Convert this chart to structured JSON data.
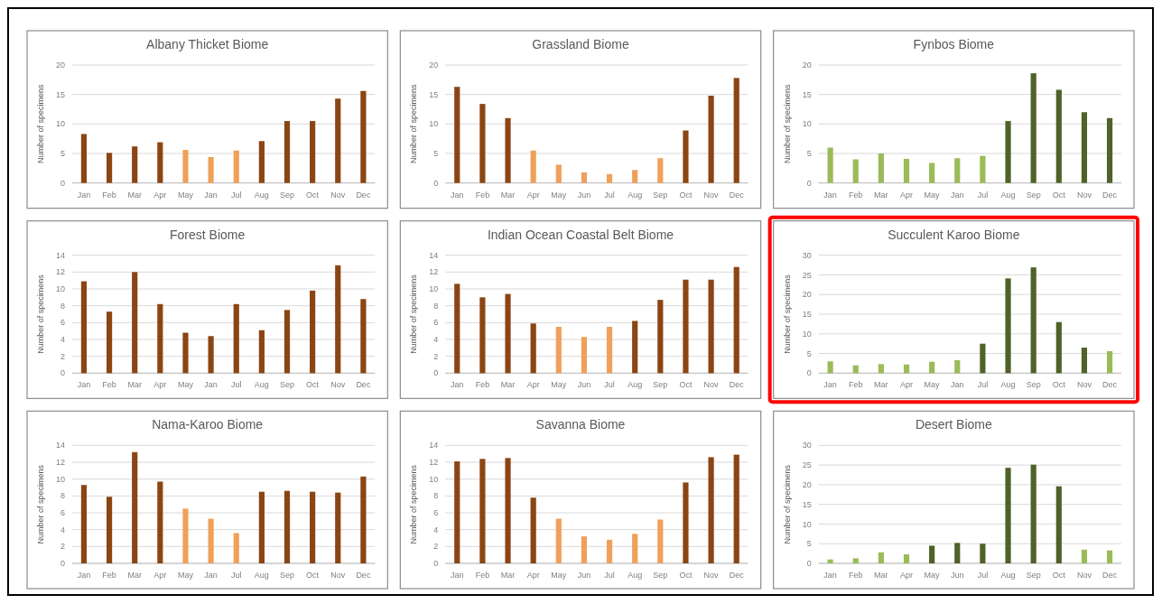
{
  "chart_data": [
    {
      "type": "bar",
      "title": "Albany Thicket Biome",
      "ylabel": "Number of specimens",
      "categories": [
        "Jan",
        "Feb",
        "Mar",
        "Apr",
        "May",
        "Jan",
        "Jul",
        "Aug",
        "Sep",
        "Oct",
        "Nov",
        "Dec"
      ],
      "values": [
        8.3,
        5.1,
        6.2,
        6.9,
        5.6,
        4.4,
        5.5,
        7.1,
        10.5,
        10.5,
        14.3,
        15.6
      ],
      "colors": [
        "#8b4513",
        "#8b4513",
        "#8b4513",
        "#8b4513",
        "#f0a05a",
        "#f0a05a",
        "#f0a05a",
        "#8b4513",
        "#8b4513",
        "#8b4513",
        "#8b4513",
        "#8b4513"
      ],
      "ylim": [
        0,
        20
      ],
      "yticks": [
        0,
        5,
        10,
        15,
        20
      ],
      "grid": "y"
    },
    {
      "type": "bar",
      "title": "Grassland Biome",
      "ylabel": "Number of specimens",
      "categories": [
        "Jan",
        "Feb",
        "Mar",
        "Apr",
        "May",
        "Jun",
        "Jul",
        "Aug",
        "Sep",
        "Oct",
        "Nov",
        "Dec"
      ],
      "values": [
        16.3,
        13.4,
        11.0,
        5.5,
        3.1,
        1.8,
        1.5,
        2.2,
        4.2,
        8.9,
        14.8,
        17.8
      ],
      "colors": [
        "#8b4513",
        "#8b4513",
        "#8b4513",
        "#f0a05a",
        "#f0a05a",
        "#f0a05a",
        "#f0a05a",
        "#f0a05a",
        "#f0a05a",
        "#8b4513",
        "#8b4513",
        "#8b4513"
      ],
      "ylim": [
        0,
        20
      ],
      "yticks": [
        0,
        5,
        10,
        15,
        20
      ],
      "grid": "y"
    },
    {
      "type": "bar",
      "title": "Fynbos Biome",
      "ylabel": "Number of specimens",
      "categories": [
        "Jan",
        "Feb",
        "Mar",
        "Apr",
        "May",
        "Jan",
        "Jul",
        "Aug",
        "Sep",
        "Oct",
        "Nov",
        "Dec"
      ],
      "values": [
        6.0,
        4.0,
        5.0,
        4.1,
        3.4,
        4.2,
        4.6,
        10.5,
        18.6,
        15.8,
        12.0,
        11.0
      ],
      "colors": [
        "#9bbb59",
        "#9bbb59",
        "#9bbb59",
        "#9bbb59",
        "#9bbb59",
        "#9bbb59",
        "#9bbb59",
        "#4f6228",
        "#4f6228",
        "#4f6228",
        "#4f6228",
        "#4f6228"
      ],
      "ylim": [
        0,
        20
      ],
      "yticks": [
        0,
        5,
        10,
        15,
        20
      ],
      "grid": "y"
    },
    {
      "type": "bar",
      "title": "Forest Biome",
      "ylabel": "Number of specimens",
      "categories": [
        "Jan",
        "Feb",
        "Mar",
        "Apr",
        "May",
        "Jan",
        "Jul",
        "Aug",
        "Sep",
        "Oct",
        "Nov",
        "Dec"
      ],
      "values": [
        10.9,
        7.3,
        12.0,
        8.2,
        4.8,
        4.4,
        8.2,
        5.1,
        7.5,
        9.8,
        12.8,
        8.8
      ],
      "colors": [
        "#8b4513",
        "#8b4513",
        "#8b4513",
        "#8b4513",
        "#8b4513",
        "#8b4513",
        "#8b4513",
        "#8b4513",
        "#8b4513",
        "#8b4513",
        "#8b4513",
        "#8b4513"
      ],
      "ylim": [
        0,
        14
      ],
      "yticks": [
        0,
        2,
        4,
        6,
        8,
        10,
        12,
        14
      ],
      "grid": "y"
    },
    {
      "type": "bar",
      "title": "Indian Ocean Coastal Belt Biome",
      "ylabel": "Number of specimens",
      "categories": [
        "Jan",
        "Feb",
        "Mar",
        "Apr",
        "May",
        "Jun",
        "Jul",
        "Aug",
        "Sep",
        "Oct",
        "Nov",
        "Dec"
      ],
      "values": [
        10.6,
        9.0,
        9.4,
        5.9,
        5.5,
        4.3,
        5.5,
        6.2,
        8.7,
        11.1,
        11.1,
        12.6
      ],
      "colors": [
        "#8b4513",
        "#8b4513",
        "#8b4513",
        "#8b4513",
        "#f0a05a",
        "#f0a05a",
        "#f0a05a",
        "#8b4513",
        "#8b4513",
        "#8b4513",
        "#8b4513",
        "#8b4513"
      ],
      "ylim": [
        0,
        14
      ],
      "yticks": [
        0,
        2,
        4,
        6,
        8,
        10,
        12,
        14
      ],
      "grid": "y"
    },
    {
      "type": "bar",
      "title": "Succulent Karoo Biome",
      "ylabel": "Number of specimens",
      "categories": [
        "Jan",
        "Feb",
        "Mar",
        "Apr",
        "May",
        "Jan",
        "Jul",
        "Aug",
        "Sep",
        "Oct",
        "Nov",
        "Dec"
      ],
      "values": [
        3.0,
        2.0,
        2.3,
        2.2,
        2.9,
        3.3,
        7.5,
        24.1,
        26.9,
        13.0,
        6.5,
        5.6
      ],
      "colors": [
        "#9bbb59",
        "#9bbb59",
        "#9bbb59",
        "#9bbb59",
        "#9bbb59",
        "#9bbb59",
        "#4f6228",
        "#4f6228",
        "#4f6228",
        "#4f6228",
        "#4f6228",
        "#9bbb59"
      ],
      "ylim": [
        0,
        30
      ],
      "yticks": [
        0,
        5,
        10,
        15,
        20,
        25,
        30
      ],
      "grid": "y"
    },
    {
      "type": "bar",
      "title": "Nama-Karoo Biome",
      "ylabel": "Number of specimens",
      "categories": [
        "Jan",
        "Feb",
        "Mar",
        "Apr",
        "May",
        "Jan",
        "Jul",
        "Aug",
        "Sep",
        "Oct",
        "Nov",
        "Dec"
      ],
      "values": [
        9.3,
        7.9,
        13.2,
        9.7,
        6.5,
        5.3,
        3.6,
        8.5,
        8.6,
        8.5,
        8.4,
        10.3
      ],
      "colors": [
        "#8b4513",
        "#8b4513",
        "#8b4513",
        "#8b4513",
        "#f0a05a",
        "#f0a05a",
        "#f0a05a",
        "#8b4513",
        "#8b4513",
        "#8b4513",
        "#8b4513",
        "#8b4513"
      ],
      "ylim": [
        0,
        14
      ],
      "yticks": [
        0,
        2,
        4,
        6,
        8,
        10,
        12,
        14
      ],
      "grid": "y"
    },
    {
      "type": "bar",
      "title": "Savanna Biome",
      "ylabel": "Number of specimens",
      "categories": [
        "Jan",
        "Feb",
        "Mar",
        "Apr",
        "May",
        "Jun",
        "Jul",
        "Aug",
        "Sep",
        "Oct",
        "Nov",
        "Dec"
      ],
      "values": [
        12.1,
        12.4,
        12.5,
        7.8,
        5.3,
        3.2,
        2.8,
        3.5,
        5.2,
        9.6,
        12.6,
        12.9
      ],
      "colors": [
        "#8b4513",
        "#8b4513",
        "#8b4513",
        "#8b4513",
        "#f0a05a",
        "#f0a05a",
        "#f0a05a",
        "#f0a05a",
        "#f0a05a",
        "#8b4513",
        "#8b4513",
        "#8b4513"
      ],
      "ylim": [
        0,
        14
      ],
      "yticks": [
        0,
        2,
        4,
        6,
        8,
        10,
        12,
        14
      ],
      "grid": "y"
    },
    {
      "type": "bar",
      "title": "Desert Biome",
      "ylabel": "Number of specimens",
      "categories": [
        "Jan",
        "Feb",
        "Mar",
        "Apr",
        "May",
        "Jun",
        "Jul",
        "Aug",
        "Sep",
        "Oct",
        "Nov",
        "Dec"
      ],
      "values": [
        1.0,
        1.3,
        2.8,
        2.3,
        4.5,
        5.2,
        5.0,
        24.3,
        25.1,
        19.6,
        3.5,
        3.3
      ],
      "colors": [
        "#9bbb59",
        "#9bbb59",
        "#9bbb59",
        "#9bbb59",
        "#4f6228",
        "#4f6228",
        "#4f6228",
        "#4f6228",
        "#4f6228",
        "#4f6228",
        "#9bbb59",
        "#9bbb59"
      ],
      "ylim": [
        0,
        30
      ],
      "yticks": [
        0,
        5,
        10,
        15,
        20,
        25,
        30
      ],
      "grid": "y"
    }
  ]
}
